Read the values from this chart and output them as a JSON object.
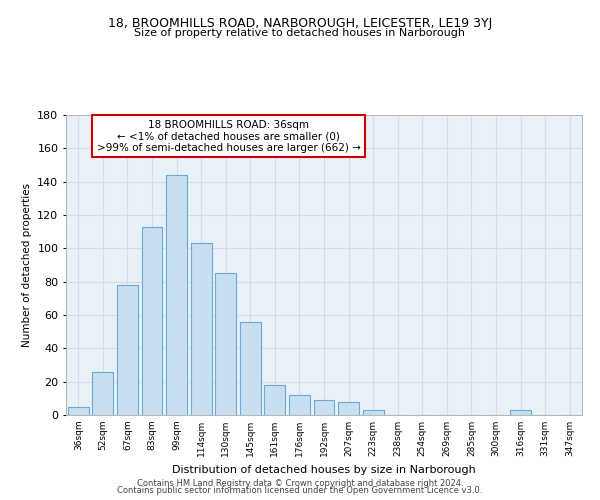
{
  "title1": "18, BROOMHILLS ROAD, NARBOROUGH, LEICESTER, LE19 3YJ",
  "title2": "Size of property relative to detached houses in Narborough",
  "xlabel": "Distribution of detached houses by size in Narborough",
  "ylabel": "Number of detached properties",
  "bar_labels": [
    "36sqm",
    "52sqm",
    "67sqm",
    "83sqm",
    "99sqm",
    "114sqm",
    "130sqm",
    "145sqm",
    "161sqm",
    "176sqm",
    "192sqm",
    "207sqm",
    "223sqm",
    "238sqm",
    "254sqm",
    "269sqm",
    "285sqm",
    "300sqm",
    "316sqm",
    "331sqm",
    "347sqm"
  ],
  "bar_values": [
    5,
    26,
    78,
    113,
    144,
    103,
    85,
    56,
    18,
    12,
    9,
    8,
    3,
    0,
    0,
    0,
    0,
    0,
    3,
    0,
    0
  ],
  "bar_color": "#c8dff0",
  "bar_edge_color": "#6aaad4",
  "ylim": [
    0,
    180
  ],
  "yticks": [
    0,
    20,
    40,
    60,
    80,
    100,
    120,
    140,
    160,
    180
  ],
  "annotation_line1": "18 BROOMHILLS ROAD: 36sqm",
  "annotation_line2": "← <1% of detached houses are smaller (0)",
  "annotation_line3": ">99% of semi-detached houses are larger (662) →",
  "footer1": "Contains HM Land Registry data © Crown copyright and database right 2024.",
  "footer2": "Contains public sector information licensed under the Open Government Licence v3.0.",
  "background_color": "#ffffff",
  "grid_color": "#d0dce8",
  "plot_bg_color": "#e8f0f8"
}
